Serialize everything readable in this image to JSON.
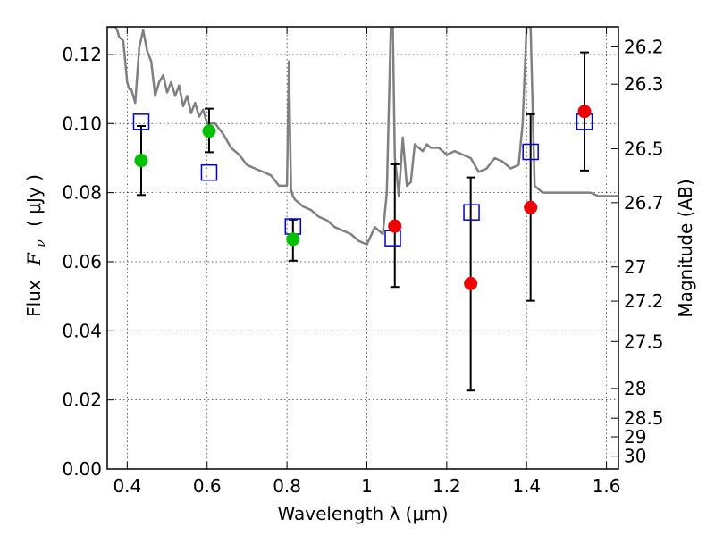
{
  "chart_data": {
    "type": "scatter",
    "xlabel": "Wavelength  λ (μm)",
    "ylabel_prefix": "Flux",
    "ylabel_symbol": "F",
    "ylabel_sub": "ν",
    "ylabel_unit": "(  μJy )",
    "y2label": "Magnitude (AB)",
    "xlim": [
      0.35,
      1.63
    ],
    "ylim": [
      0.0,
      0.128
    ],
    "grid": true,
    "x_ticks": [
      0.4,
      0.6,
      0.8,
      1.0,
      1.2,
      1.4,
      1.6
    ],
    "x_tick_labels": [
      "0.4",
      "0.6",
      "0.8",
      "1",
      "1.2",
      "1.4",
      "1.6"
    ],
    "y_ticks": [
      0.0,
      0.02,
      0.04,
      0.06,
      0.08,
      0.1,
      0.12
    ],
    "y_tick_labels": [
      "0.00",
      "0.02",
      "0.04",
      "0.06",
      "0.08",
      "0.10",
      "0.12"
    ],
    "mag_ticks": [
      {
        "label": "26.2",
        "flux": 0.1222
      },
      {
        "label": "26.3",
        "flux": 0.1114
      },
      {
        "label": "26.5",
        "flux": 0.0927
      },
      {
        "label": "26.7",
        "flux": 0.0771
      },
      {
        "label": "27",
        "flux": 0.0585
      },
      {
        "label": "27.2",
        "flux": 0.0486
      },
      {
        "label": "27.5",
        "flux": 0.0369
      },
      {
        "label": "28",
        "flux": 0.0233
      },
      {
        "label": "28.5",
        "flux": 0.0147
      },
      {
        "label": "29",
        "flux": 0.0093
      },
      {
        "label": "30",
        "flux": 0.0037
      }
    ],
    "series": [
      {
        "kind": "model-spectrum-line",
        "color": "#808080",
        "x": [
          0.35,
          0.36,
          0.37,
          0.375,
          0.38,
          0.39,
          0.395,
          0.4,
          0.405,
          0.41,
          0.42,
          0.43,
          0.44,
          0.45,
          0.46,
          0.47,
          0.48,
          0.49,
          0.5,
          0.51,
          0.52,
          0.53,
          0.54,
          0.55,
          0.56,
          0.57,
          0.58,
          0.59,
          0.6,
          0.62,
          0.64,
          0.66,
          0.68,
          0.7,
          0.72,
          0.74,
          0.76,
          0.78,
          0.8,
          0.805,
          0.81,
          0.815,
          0.82,
          0.84,
          0.86,
          0.88,
          0.9,
          0.92,
          0.94,
          0.96,
          0.98,
          1.0,
          1.02,
          1.04,
          1.05,
          1.06,
          1.065,
          1.07,
          1.075,
          1.08,
          1.09,
          1.1,
          1.11,
          1.12,
          1.13,
          1.14,
          1.15,
          1.16,
          1.18,
          1.2,
          1.22,
          1.24,
          1.26,
          1.28,
          1.3,
          1.32,
          1.34,
          1.36,
          1.38,
          1.39,
          1.4,
          1.405,
          1.41,
          1.42,
          1.43,
          1.44,
          1.45,
          1.46,
          1.48,
          1.5,
          1.52,
          1.54,
          1.56,
          1.58,
          1.6,
          1.63
        ],
        "y": [
          0.128,
          0.128,
          0.128,
          0.127,
          0.125,
          0.124,
          0.118,
          0.112,
          0.11,
          0.11,
          0.106,
          0.122,
          0.127,
          0.121,
          0.118,
          0.108,
          0.112,
          0.114,
          0.109,
          0.112,
          0.108,
          0.111,
          0.105,
          0.108,
          0.103,
          0.106,
          0.102,
          0.104,
          0.1,
          0.1,
          0.097,
          0.093,
          0.091,
          0.088,
          0.087,
          0.086,
          0.085,
          0.082,
          0.082,
          0.118,
          0.081,
          0.079,
          0.078,
          0.076,
          0.075,
          0.073,
          0.072,
          0.07,
          0.069,
          0.068,
          0.066,
          0.065,
          0.07,
          0.068,
          0.08,
          0.128,
          0.128,
          0.09,
          0.085,
          0.079,
          0.096,
          0.082,
          0.083,
          0.094,
          0.093,
          0.092,
          0.094,
          0.093,
          0.093,
          0.091,
          0.092,
          0.091,
          0.09,
          0.086,
          0.087,
          0.09,
          0.089,
          0.087,
          0.088,
          0.1,
          0.128,
          0.128,
          0.128,
          0.082,
          0.081,
          0.08,
          0.08,
          0.08,
          0.08,
          0.08,
          0.08,
          0.08,
          0.08,
          0.079,
          0.079,
          0.079
        ]
      },
      {
        "kind": "model-photometry",
        "marker": "open-square",
        "color": "#0000cc",
        "x": [
          0.435,
          0.605,
          0.815,
          1.065,
          1.262,
          1.41,
          1.545
        ],
        "y": [
          0.1005,
          0.0858,
          0.0702,
          0.0668,
          0.0743,
          0.0918,
          0.1005
        ]
      },
      {
        "kind": "observed-flux",
        "marker": "filled-circle",
        "color": "#00c000",
        "x": [
          0.435,
          0.605,
          0.815
        ],
        "y": [
          0.0893,
          0.0978,
          0.0665
        ],
        "yerr_lo": [
          0.0793,
          0.0917,
          0.0603
        ],
        "yerr_hi": [
          0.0993,
          0.1043,
          0.0722
        ]
      },
      {
        "kind": "observed-flux",
        "marker": "filled-circle",
        "color": "#ee0000",
        "x": [
          1.07,
          1.26,
          1.41,
          1.545
        ],
        "y": [
          0.0703,
          0.0537,
          0.0757,
          0.1035
        ],
        "yerr_lo": [
          0.0527,
          0.0227,
          0.0487,
          0.0864
        ],
        "yerr_hi": [
          0.0882,
          0.0844,
          0.1027,
          0.1206
        ]
      }
    ]
  }
}
